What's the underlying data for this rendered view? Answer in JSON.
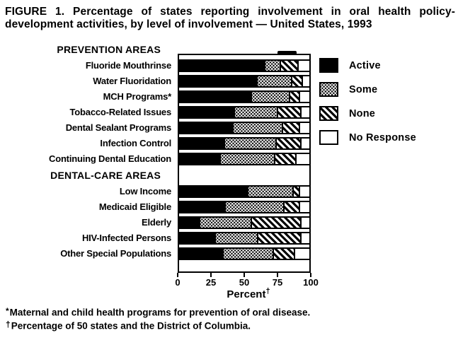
{
  "title": {
    "line1": "FIGURE 1. Percentage of states reporting involvement in oral health policy-",
    "line2": "development activities, by level of involvement — United States, 1993"
  },
  "chart_data": {
    "type": "bar",
    "orientation": "horizontal",
    "stacked": true,
    "title": "FIGURE 1. Percentage of states reporting involvement in oral health policy-development activities, by level of involvement — United States, 1993",
    "xlabel": "Percent",
    "xlabel_superscript": "†",
    "xlim": [
      0,
      100
    ],
    "x_ticks": [
      "0",
      "25",
      "50",
      "75",
      "100"
    ],
    "grid": false,
    "legend_position": "right",
    "series": [
      "Active",
      "Some",
      "None",
      "No Response"
    ],
    "groups": [
      {
        "section": "PREVENTION AREAS",
        "items": [
          {
            "label": "Fluoride Mouthrinse",
            "values": [
              65,
              12,
              14,
              9
            ]
          },
          {
            "label": "Water Fluoridation",
            "values": [
              59,
              27,
              8,
              6
            ]
          },
          {
            "label": "MCH Programs*",
            "values": [
              55,
              29,
              8,
              8
            ]
          },
          {
            "label": "Tobacco-Related Issues",
            "values": [
              42,
              33,
              18,
              7
            ]
          },
          {
            "label": "Dental Sealant Programs",
            "values": [
              41,
              38,
              13,
              8
            ]
          },
          {
            "label": "Infection Control",
            "values": [
              34,
              40,
              19,
              7
            ]
          },
          {
            "label": "Continuing Dental Education",
            "values": [
              31,
              42,
              16,
              11
            ]
          }
        ]
      },
      {
        "section": "DENTAL-CARE AREAS",
        "items": [
          {
            "label": "Low Income",
            "values": [
              52,
              35,
              5,
              8
            ]
          },
          {
            "label": "Medicaid Eligible",
            "values": [
              35,
              45,
              12,
              8
            ]
          },
          {
            "label": "Elderly",
            "values": [
              15,
              40,
              38,
              7
            ]
          },
          {
            "label": "HIV-Infected Persons",
            "values": [
              27,
              33,
              33,
              7
            ]
          },
          {
            "label": "Other Special Populations",
            "values": [
              33,
              39,
              16,
              12
            ]
          }
        ]
      }
    ],
    "colors": {
      "active": "#000000",
      "some_dot_screen": "#000000",
      "none_hatch": "#000000",
      "no_response": "#ffffff",
      "background": "#ffffff"
    }
  },
  "legend": {
    "items": [
      {
        "label": "Active",
        "pattern": "solid-black"
      },
      {
        "label": "Some",
        "pattern": "dot-screen"
      },
      {
        "label": "None",
        "pattern": "diagonal-hatch"
      },
      {
        "label": "No Response",
        "pattern": "open-white"
      }
    ]
  },
  "footnotes": [
    {
      "marker": "*",
      "text": "Maternal and child health programs for prevention of oral disease."
    },
    {
      "marker": "†",
      "text": "Percentage of 50 states and the District of Columbia."
    }
  ]
}
